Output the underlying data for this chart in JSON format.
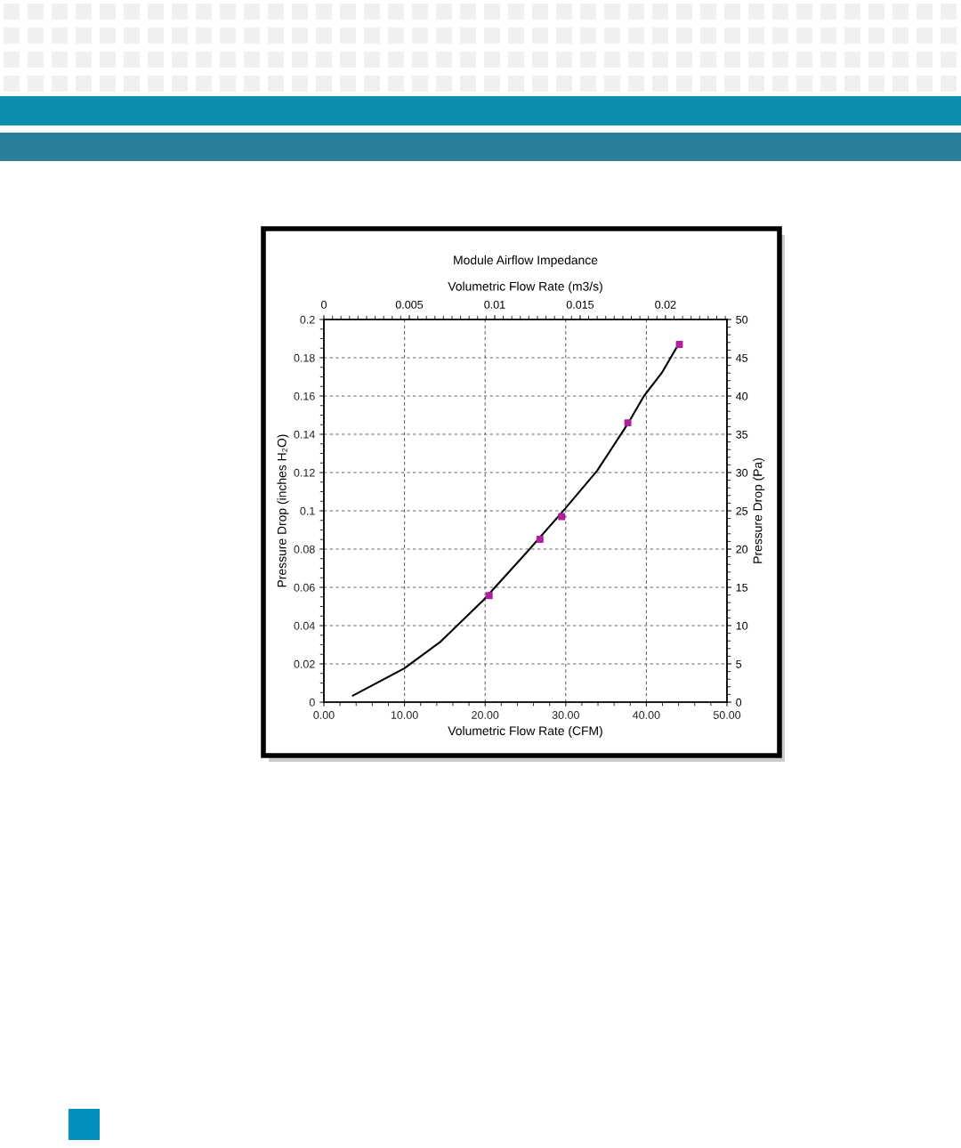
{
  "chart_data": {
    "type": "scatter",
    "title": "Module Airflow Impedance",
    "xlabel": "Volumetric Flow Rate (CFM)",
    "ylabel": "Pressure Drop (inches H₂O)",
    "y2label": "Pressure Drop (Pa)",
    "x2label": "Volumetric Flow Rate (m3/s)",
    "series": [
      {
        "type": "line",
        "color": "#000000",
        "marker": "none",
        "line_style": "solid",
        "x": [
          3.6,
          10,
          14.5,
          19.8,
          25.1,
          29.9,
          33.9,
          37.7,
          39.7,
          41.9,
          43.7
        ],
        "values": [
          0.0034,
          0.0177,
          0.0317,
          0.0534,
          0.078,
          0.101,
          0.121,
          0.1455,
          0.16,
          0.172,
          0.185
        ]
      },
      {
        "color": "#b0209c",
        "marker": "square",
        "x": [
          20.5,
          26.8,
          29.5,
          37.7,
          44.1
        ],
        "values": [
          0.0557,
          0.0851,
          0.097,
          0.146,
          0.187
        ]
      }
    ],
    "xlim": [
      0,
      50
    ],
    "xticks": [
      {
        "value": 0,
        "label": "0.00"
      },
      {
        "value": 10,
        "label": "10.00"
      },
      {
        "value": 20,
        "label": "20.00"
      },
      {
        "value": 30,
        "label": "30.00"
      },
      {
        "value": 40,
        "label": "40.00"
      },
      {
        "value": 50,
        "label": "50.00"
      }
    ],
    "ylim": [
      0,
      0.2
    ],
    "yticks": [
      0,
      0.02,
      0.04,
      0.06,
      0.08,
      0.1,
      0.12,
      0.14,
      0.16,
      0.18,
      0.2
    ],
    "y2lim": [
      0,
      50
    ],
    "y2ticks": [
      0,
      5,
      10,
      15,
      20,
      25,
      30,
      35,
      40,
      45,
      50
    ],
    "x2lim": [
      0,
      0.0236
    ],
    "x2ticks": [
      0,
      0.005,
      0.01,
      0.015,
      0.02
    ],
    "grid": true,
    "legend": false
  }
}
